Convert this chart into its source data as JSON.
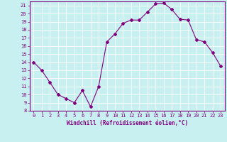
{
  "x": [
    0,
    1,
    2,
    3,
    4,
    5,
    6,
    7,
    8,
    9,
    10,
    11,
    12,
    13,
    14,
    15,
    16,
    17,
    18,
    19,
    20,
    21,
    22,
    23
  ],
  "y": [
    14,
    13,
    11.5,
    10,
    9.5,
    9,
    10.5,
    8.5,
    11,
    16.5,
    17.5,
    18.8,
    19.2,
    19.2,
    20.2,
    21.2,
    21.3,
    20.5,
    19.3,
    19.2,
    16.8,
    16.5,
    15.2,
    13.5
  ],
  "line_color": "#800080",
  "marker": "D",
  "marker_size": 2.0,
  "bg_color": "#c8f0f0",
  "grid_color": "#ffffff",
  "xlabel": "Windchill (Refroidissement éolien,°C)",
  "xlabel_color": "#800080",
  "xlabel_fontsize": 5.5,
  "tick_color": "#800080",
  "tick_fontsize": 5.0,
  "ylim": [
    8,
    21.5
  ],
  "xlim": [
    -0.5,
    23.5
  ],
  "yticks": [
    8,
    9,
    10,
    11,
    12,
    13,
    14,
    15,
    16,
    17,
    18,
    19,
    20,
    21
  ],
  "xticks": [
    0,
    1,
    2,
    3,
    4,
    5,
    6,
    7,
    8,
    9,
    10,
    11,
    12,
    13,
    14,
    15,
    16,
    17,
    18,
    19,
    20,
    21,
    22,
    23
  ]
}
